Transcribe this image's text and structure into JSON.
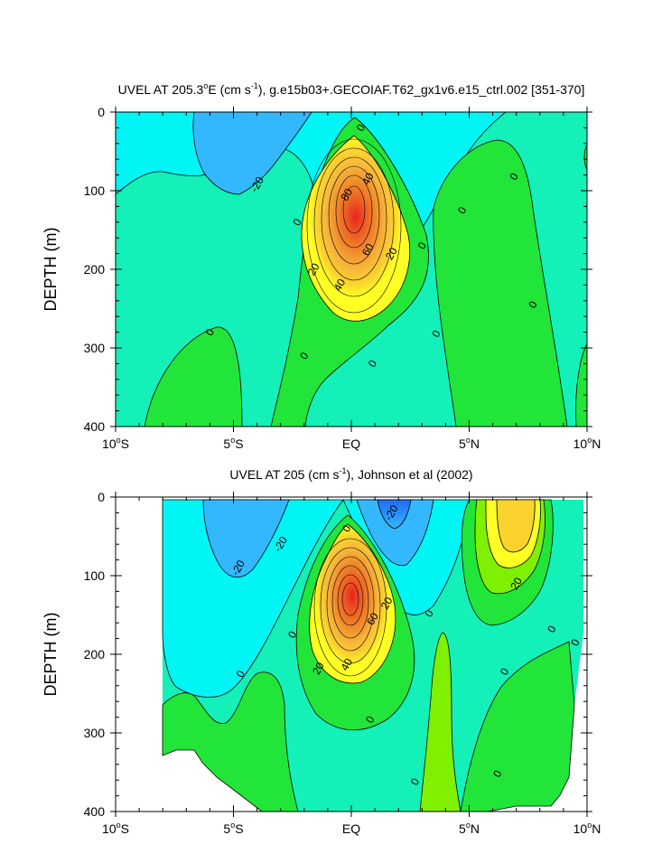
{
  "colors": {
    "red": "#e8231c",
    "orange_red": "#ee5a24",
    "orange": "#f0882b",
    "orange_light": "#f6b53a",
    "gold": "#fbd32e",
    "yellow": "#ffff24",
    "lime": "#7ef000",
    "green": "#22e53a",
    "aqua_green": "#13f0b8",
    "cyan": "#00f5f5",
    "sky": "#33b8ff",
    "blue": "#1f6cf5",
    "border": "#000000",
    "background": "#ffffff"
  },
  "chart_data": [
    {
      "type": "contour",
      "variable": "UVEL",
      "title_prefix": "UVEL AT 205.3",
      "title_sup1": "o",
      "title_mid": "E (cm s",
      "title_sup2": "-1",
      "title_suffix": "), g.e15b03+.GECOIAF.T62_gx1v6.e15_ctrl.002 [351-370]",
      "ylabel": "DEPTH (m)",
      "xlim": [
        -10,
        10
      ],
      "ylim": [
        400,
        0
      ],
      "x_ticks": [
        {
          "value": -10,
          "num": "10",
          "sup": "o",
          "hem": "S"
        },
        {
          "value": -5,
          "num": "5",
          "sup": "o",
          "hem": "S"
        },
        {
          "value": 0,
          "num": "EQ",
          "sup": "",
          "hem": ""
        },
        {
          "value": 5,
          "num": "5",
          "sup": "o",
          "hem": "N"
        },
        {
          "value": 10,
          "num": "10",
          "sup": "o",
          "hem": "N"
        }
      ],
      "y_ticks": [
        "0",
        "100",
        "200",
        "300",
        "400"
      ],
      "y_tick_values": [
        0,
        100,
        200,
        300,
        400
      ],
      "contour_interval": 10,
      "core": {
        "lat": 0,
        "depth": 135,
        "max": 90
      },
      "contour_labels": [
        {
          "text": "0",
          "lat": 0.4,
          "depth": 20
        },
        {
          "text": "-20",
          "lat": -4.0,
          "depth": 92
        },
        {
          "text": "0",
          "lat": -2.3,
          "depth": 140
        },
        {
          "text": "40",
          "lat": 0.7,
          "depth": 85
        },
        {
          "text": "80",
          "lat": -0.2,
          "depth": 105
        },
        {
          "text": "60",
          "lat": 0.7,
          "depth": 175
        },
        {
          "text": "20",
          "lat": 1.7,
          "depth": 180
        },
        {
          "text": "20",
          "lat": -1.6,
          "depth": 200
        },
        {
          "text": "40",
          "lat": -0.5,
          "depth": 220
        },
        {
          "text": "0",
          "lat": 3.0,
          "depth": 170
        },
        {
          "text": "0",
          "lat": 4.7,
          "depth": 125
        },
        {
          "text": "0",
          "lat": 6.9,
          "depth": 82
        },
        {
          "text": "0",
          "lat": 7.7,
          "depth": 245
        },
        {
          "text": "0",
          "lat": 3.6,
          "depth": 282
        },
        {
          "text": "0",
          "lat": -6.0,
          "depth": 280
        },
        {
          "text": "0",
          "lat": -2.0,
          "depth": 310
        },
        {
          "text": "0",
          "lat": 0.9,
          "depth": 320
        }
      ]
    },
    {
      "type": "contour",
      "variable": "UVEL",
      "title_prefix": "UVEL AT 205 (cm s",
      "title_sup1": "-1",
      "title_mid": "",
      "title_sup2": "",
      "title_suffix": "), Johnson et al (2002)",
      "ylabel": "DEPTH (m)",
      "xlim": [
        -10,
        10
      ],
      "ylim": [
        400,
        0
      ],
      "x_ticks": [
        {
          "value": -10,
          "num": "10",
          "sup": "o",
          "hem": "S"
        },
        {
          "value": -5,
          "num": "5",
          "sup": "o",
          "hem": "S"
        },
        {
          "value": 0,
          "num": "EQ",
          "sup": "",
          "hem": ""
        },
        {
          "value": 5,
          "num": "5",
          "sup": "o",
          "hem": "N"
        },
        {
          "value": 10,
          "num": "10",
          "sup": "o",
          "hem": "N"
        }
      ],
      "y_ticks": [
        "0",
        "100",
        "200",
        "300",
        "400"
      ],
      "y_tick_values": [
        0,
        100,
        200,
        300,
        400
      ],
      "contour_interval": 10,
      "core": {
        "lat": 0,
        "depth": 135,
        "max": 90
      },
      "data_extent": {
        "lat_min": -8,
        "lat_max": 9.6,
        "depth_min": 0
      },
      "contour_labels": [
        {
          "text": "0",
          "lat": -0.2,
          "depth": 40
        },
        {
          "text": "-20",
          "lat": -3.0,
          "depth": 60
        },
        {
          "text": "-20",
          "lat": -4.8,
          "depth": 90
        },
        {
          "text": "-20",
          "lat": 1.7,
          "depth": 20
        },
        {
          "text": "20",
          "lat": 1.5,
          "depth": 135
        },
        {
          "text": "60",
          "lat": 0.9,
          "depth": 155
        },
        {
          "text": "20",
          "lat": 7.0,
          "depth": 110
        },
        {
          "text": "0",
          "lat": 3.3,
          "depth": 148
        },
        {
          "text": "0",
          "lat": -2.5,
          "depth": 175
        },
        {
          "text": "0",
          "lat": 9.5,
          "depth": 185
        },
        {
          "text": "0",
          "lat": 8.5,
          "depth": 168
        },
        {
          "text": "0",
          "lat": 6.5,
          "depth": 222
        },
        {
          "text": "20",
          "lat": -1.4,
          "depth": 218
        },
        {
          "text": "40",
          "lat": -0.2,
          "depth": 213
        },
        {
          "text": "0",
          "lat": -4.7,
          "depth": 225
        },
        {
          "text": "0",
          "lat": 0.8,
          "depth": 283
        },
        {
          "text": "0",
          "lat": 2.7,
          "depth": 362
        },
        {
          "text": "0",
          "lat": 6.2,
          "depth": 352
        }
      ]
    }
  ]
}
